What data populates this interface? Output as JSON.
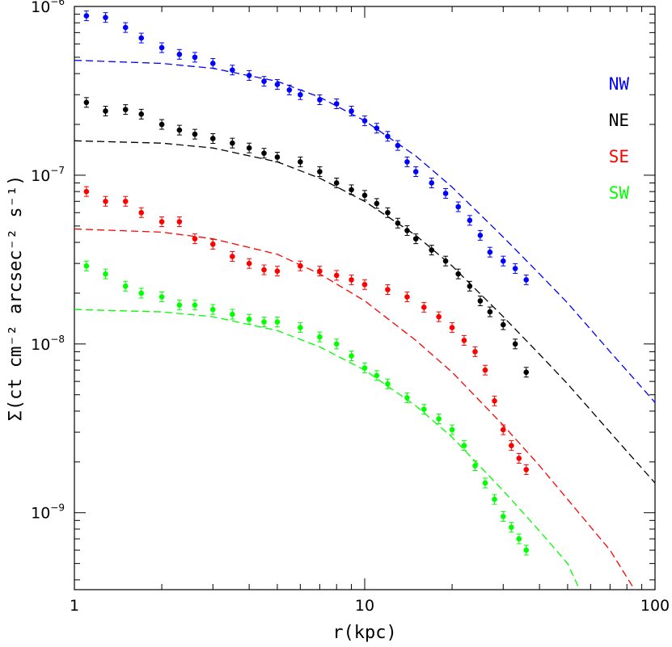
{
  "chart_data": {
    "type": "scatter",
    "xlabel": "r(kpc)",
    "ylabel": "Σ(ct cm⁻² arcsec⁻² s⁻¹)",
    "x_scale": "log",
    "y_scale": "log",
    "xlim": [
      1,
      100
    ],
    "ylim": [
      3.5e-10,
      1e-06
    ],
    "x_ticks": [
      {
        "value": 1,
        "label": "1"
      },
      {
        "value": 10,
        "label": "10"
      },
      {
        "value": 100,
        "label": "100"
      }
    ],
    "y_ticks": [
      {
        "value": 1e-06,
        "base": "10",
        "exp": "−6"
      },
      {
        "value": 1e-07,
        "base": "10",
        "exp": "−7"
      },
      {
        "value": 1e-08,
        "base": "10",
        "exp": "−8"
      },
      {
        "value": 1e-09,
        "base": "10",
        "exp": "−9"
      }
    ],
    "legend_position": "right",
    "series": [
      {
        "name": "NW",
        "color": "#0000ff",
        "points": [
          [
            1.1,
            8.8e-07
          ],
          [
            1.28,
            8.6e-07
          ],
          [
            1.5,
            7.5e-07
          ],
          [
            1.7,
            6.5e-07
          ],
          [
            2.0,
            5.7e-07
          ],
          [
            2.3,
            5.2e-07
          ],
          [
            2.6,
            5e-07
          ],
          [
            3.0,
            4.6e-07
          ],
          [
            3.5,
            4.2e-07
          ],
          [
            4.0,
            3.9e-07
          ],
          [
            4.5,
            3.6e-07
          ],
          [
            5.0,
            3.45e-07
          ],
          [
            5.5,
            3.2e-07
          ],
          [
            6.0,
            3e-07
          ],
          [
            7.0,
            2.8e-07
          ],
          [
            8.0,
            2.65e-07
          ],
          [
            9.0,
            2.4e-07
          ],
          [
            10.0,
            2.1e-07
          ],
          [
            11.0,
            1.9e-07
          ],
          [
            12.0,
            1.7e-07
          ],
          [
            13.0,
            1.5e-07
          ],
          [
            14.0,
            1.2e-07
          ],
          [
            15.0,
            1.05e-07
          ],
          [
            17.0,
            9e-08
          ],
          [
            19.0,
            7.8e-08
          ],
          [
            21.0,
            6.5e-08
          ],
          [
            23.0,
            5.4e-08
          ],
          [
            25.0,
            4.4e-08
          ],
          [
            27.0,
            3.5e-08
          ],
          [
            30.0,
            3.1e-08
          ],
          [
            33.0,
            2.8e-08
          ],
          [
            36.0,
            2.4e-08
          ]
        ]
      },
      {
        "name": "NE",
        "color": "#000000",
        "points": [
          [
            1.1,
            2.7e-07
          ],
          [
            1.28,
            2.4e-07
          ],
          [
            1.5,
            2.45e-07
          ],
          [
            1.7,
            2.3e-07
          ],
          [
            2.0,
            2e-07
          ],
          [
            2.3,
            1.85e-07
          ],
          [
            2.6,
            1.75e-07
          ],
          [
            3.0,
            1.65e-07
          ],
          [
            3.5,
            1.55e-07
          ],
          [
            4.0,
            1.45e-07
          ],
          [
            4.5,
            1.35e-07
          ],
          [
            5.0,
            1.28e-07
          ],
          [
            6.0,
            1.2e-07
          ],
          [
            7.0,
            1.05e-07
          ],
          [
            8.0,
            9e-08
          ],
          [
            9.0,
            8.2e-08
          ],
          [
            10.0,
            7.6e-08
          ],
          [
            11.0,
            6.8e-08
          ],
          [
            12.0,
            6e-08
          ],
          [
            13.0,
            5.2e-08
          ],
          [
            14.0,
            4.7e-08
          ],
          [
            15.0,
            4.2e-08
          ],
          [
            17.0,
            3.6e-08
          ],
          [
            19.0,
            3.1e-08
          ],
          [
            21.0,
            2.6e-08
          ],
          [
            23.0,
            2.2e-08
          ],
          [
            25.0,
            1.8e-08
          ],
          [
            27.0,
            1.55e-08
          ],
          [
            30.0,
            1.3e-08
          ],
          [
            33.0,
            1e-08
          ],
          [
            36.0,
            6.8e-09
          ]
        ]
      },
      {
        "name": "SE",
        "color": "#ff0000",
        "points": [
          [
            1.1,
            8e-08
          ],
          [
            1.28,
            7e-08
          ],
          [
            1.5,
            7e-08
          ],
          [
            1.7,
            6e-08
          ],
          [
            2.0,
            5.3e-08
          ],
          [
            2.3,
            5.3e-08
          ],
          [
            2.6,
            4.2e-08
          ],
          [
            3.0,
            3.9e-08
          ],
          [
            3.5,
            3.3e-08
          ],
          [
            4.0,
            3e-08
          ],
          [
            4.5,
            2.75e-08
          ],
          [
            5.0,
            2.7e-08
          ],
          [
            6.0,
            2.9e-08
          ],
          [
            7.0,
            2.7e-08
          ],
          [
            8.0,
            2.55e-08
          ],
          [
            9.0,
            2.4e-08
          ],
          [
            10.0,
            2.25e-08
          ],
          [
            12.0,
            2.1e-08
          ],
          [
            14.0,
            1.9e-08
          ],
          [
            16.0,
            1.65e-08
          ],
          [
            18.0,
            1.45e-08
          ],
          [
            20.0,
            1.25e-08
          ],
          [
            22.0,
            1.05e-08
          ],
          [
            24.0,
            9e-09
          ],
          [
            26.0,
            7e-09
          ],
          [
            28.0,
            4.6e-09
          ],
          [
            30.0,
            3.1e-09
          ],
          [
            32.0,
            2.5e-09
          ],
          [
            34.0,
            2.1e-09
          ],
          [
            36.0,
            1.8e-09
          ]
        ]
      },
      {
        "name": "SW",
        "color": "#00ff00",
        "points": [
          [
            1.1,
            2.9e-08
          ],
          [
            1.28,
            2.6e-08
          ],
          [
            1.5,
            2.2e-08
          ],
          [
            1.7,
            2e-08
          ],
          [
            2.0,
            1.9e-08
          ],
          [
            2.3,
            1.7e-08
          ],
          [
            2.6,
            1.7e-08
          ],
          [
            3.0,
            1.6e-08
          ],
          [
            3.5,
            1.5e-08
          ],
          [
            4.0,
            1.4e-08
          ],
          [
            4.5,
            1.35e-08
          ],
          [
            5.0,
            1.35e-08
          ],
          [
            6.0,
            1.25e-08
          ],
          [
            7.0,
            1.1e-08
          ],
          [
            8.0,
            1e-08
          ],
          [
            9.0,
            8.5e-09
          ],
          [
            10.0,
            7.2e-09
          ],
          [
            11.0,
            6.5e-09
          ],
          [
            12.0,
            5.8e-09
          ],
          [
            14.0,
            4.8e-09
          ],
          [
            16.0,
            4.1e-09
          ],
          [
            18.0,
            3.6e-09
          ],
          [
            20.0,
            3.1e-09
          ],
          [
            22.0,
            2.5e-09
          ],
          [
            24.0,
            1.9e-09
          ],
          [
            26.0,
            1.5e-09
          ],
          [
            28.0,
            1.2e-09
          ],
          [
            30.0,
            9.5e-10
          ],
          [
            32.0,
            8.2e-10
          ],
          [
            34.0,
            7e-10
          ],
          [
            36.0,
            6e-10
          ]
        ]
      }
    ],
    "model_curves": [
      {
        "series": "NW",
        "color": "#0000ff",
        "style": "dashed",
        "points": [
          [
            1,
            4.8e-07
          ],
          [
            2,
            4.6e-07
          ],
          [
            3,
            4.3e-07
          ],
          [
            5,
            3.6e-07
          ],
          [
            7,
            2.9e-07
          ],
          [
            10,
            2.1e-07
          ],
          [
            15,
            1.3e-07
          ],
          [
            20,
            8.5e-08
          ],
          [
            30,
            4.3e-08
          ],
          [
            40,
            2.6e-08
          ],
          [
            50,
            1.75e-08
          ],
          [
            70,
            9e-09
          ],
          [
            100,
            4.5e-09
          ]
        ]
      },
      {
        "series": "NE",
        "color": "#000000",
        "style": "dashed",
        "points": [
          [
            1,
            1.6e-07
          ],
          [
            2,
            1.55e-07
          ],
          [
            3,
            1.45e-07
          ],
          [
            5,
            1.2e-07
          ],
          [
            7,
            9.6e-08
          ],
          [
            10,
            7e-08
          ],
          [
            15,
            4.4e-08
          ],
          [
            20,
            2.9e-08
          ],
          [
            30,
            1.45e-08
          ],
          [
            40,
            8.7e-09
          ],
          [
            50,
            5.8e-09
          ],
          [
            70,
            3e-09
          ],
          [
            100,
            1.5e-09
          ]
        ]
      },
      {
        "series": "SE",
        "color": "#ff0000",
        "style": "dashed",
        "points": [
          [
            1,
            4.8e-08
          ],
          [
            2,
            4.6e-08
          ],
          [
            3,
            4.2e-08
          ],
          [
            5,
            3.4e-08
          ],
          [
            7,
            2.6e-08
          ],
          [
            10,
            1.8e-08
          ],
          [
            15,
            1.05e-08
          ],
          [
            20,
            6.8e-09
          ],
          [
            30,
            3.3e-09
          ],
          [
            40,
            1.9e-09
          ],
          [
            50,
            1.2e-09
          ],
          [
            70,
            6e-10
          ],
          [
            85,
            3.5e-10
          ]
        ]
      },
      {
        "series": "SW",
        "color": "#00ff00",
        "style": "dashed",
        "points": [
          [
            1,
            1.6e-08
          ],
          [
            2,
            1.55e-08
          ],
          [
            3,
            1.45e-08
          ],
          [
            5,
            1.2e-08
          ],
          [
            7,
            9.6e-09
          ],
          [
            10,
            7e-09
          ],
          [
            15,
            4.3e-09
          ],
          [
            20,
            2.8e-09
          ],
          [
            30,
            1.35e-09
          ],
          [
            40,
            7.8e-10
          ],
          [
            50,
            5e-10
          ],
          [
            55,
            3.5e-10
          ]
        ]
      }
    ]
  }
}
